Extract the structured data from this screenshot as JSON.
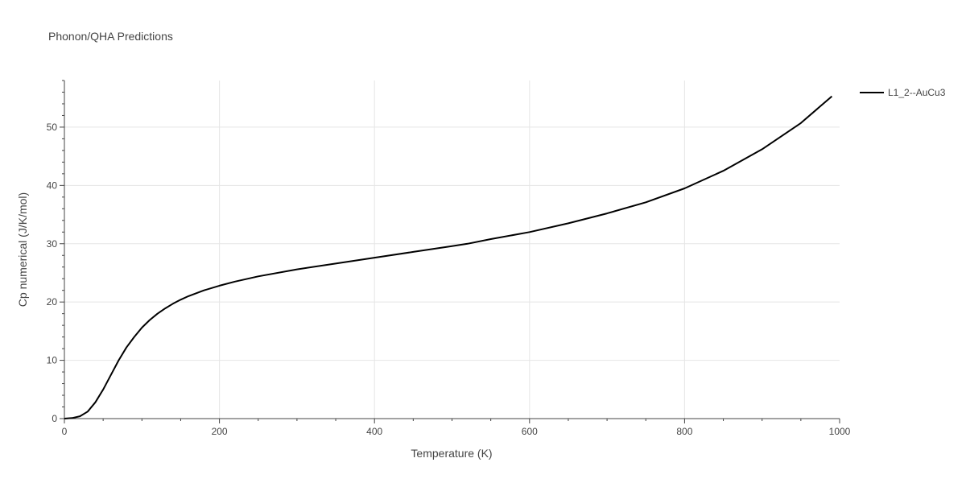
{
  "chart_data": {
    "type": "line",
    "title": "Phonon/QHA Predictions",
    "xlabel": "Temperature (K)",
    "ylabel": "Cp numerical (J/K/mol)",
    "xlim": [
      0,
      1000
    ],
    "ylim": [
      0,
      58
    ],
    "x_ticks": [
      0,
      200,
      400,
      600,
      800,
      1000
    ],
    "y_ticks": [
      0,
      10,
      20,
      30,
      40,
      50
    ],
    "x_tick_labels": [
      "0",
      "200",
      "400",
      "600",
      "800",
      "1000"
    ],
    "y_tick_labels": [
      "0",
      "10",
      "20",
      "30",
      "40",
      "50"
    ],
    "grid": true,
    "legend_position": "top-right",
    "line_color": "#000000",
    "series": [
      {
        "name": "L1_2--AuCu3",
        "x": [
          0,
          10,
          20,
          30,
          40,
          50,
          60,
          70,
          80,
          90,
          100,
          110,
          120,
          130,
          140,
          150,
          160,
          180,
          200,
          220,
          250,
          300,
          350,
          400,
          450,
          500,
          520,
          550,
          600,
          650,
          700,
          750,
          800,
          850,
          900,
          950,
          990
        ],
        "y": [
          0,
          0.1,
          0.4,
          1.2,
          2.8,
          5.0,
          7.5,
          10.0,
          12.2,
          14.0,
          15.6,
          16.9,
          18.0,
          18.9,
          19.7,
          20.4,
          21.0,
          22.0,
          22.8,
          23.5,
          24.4,
          25.6,
          26.6,
          27.6,
          28.6,
          29.6,
          30.0,
          30.8,
          32.0,
          33.5,
          35.2,
          37.1,
          39.5,
          42.5,
          46.2,
          50.7,
          55.3
        ]
      }
    ]
  }
}
